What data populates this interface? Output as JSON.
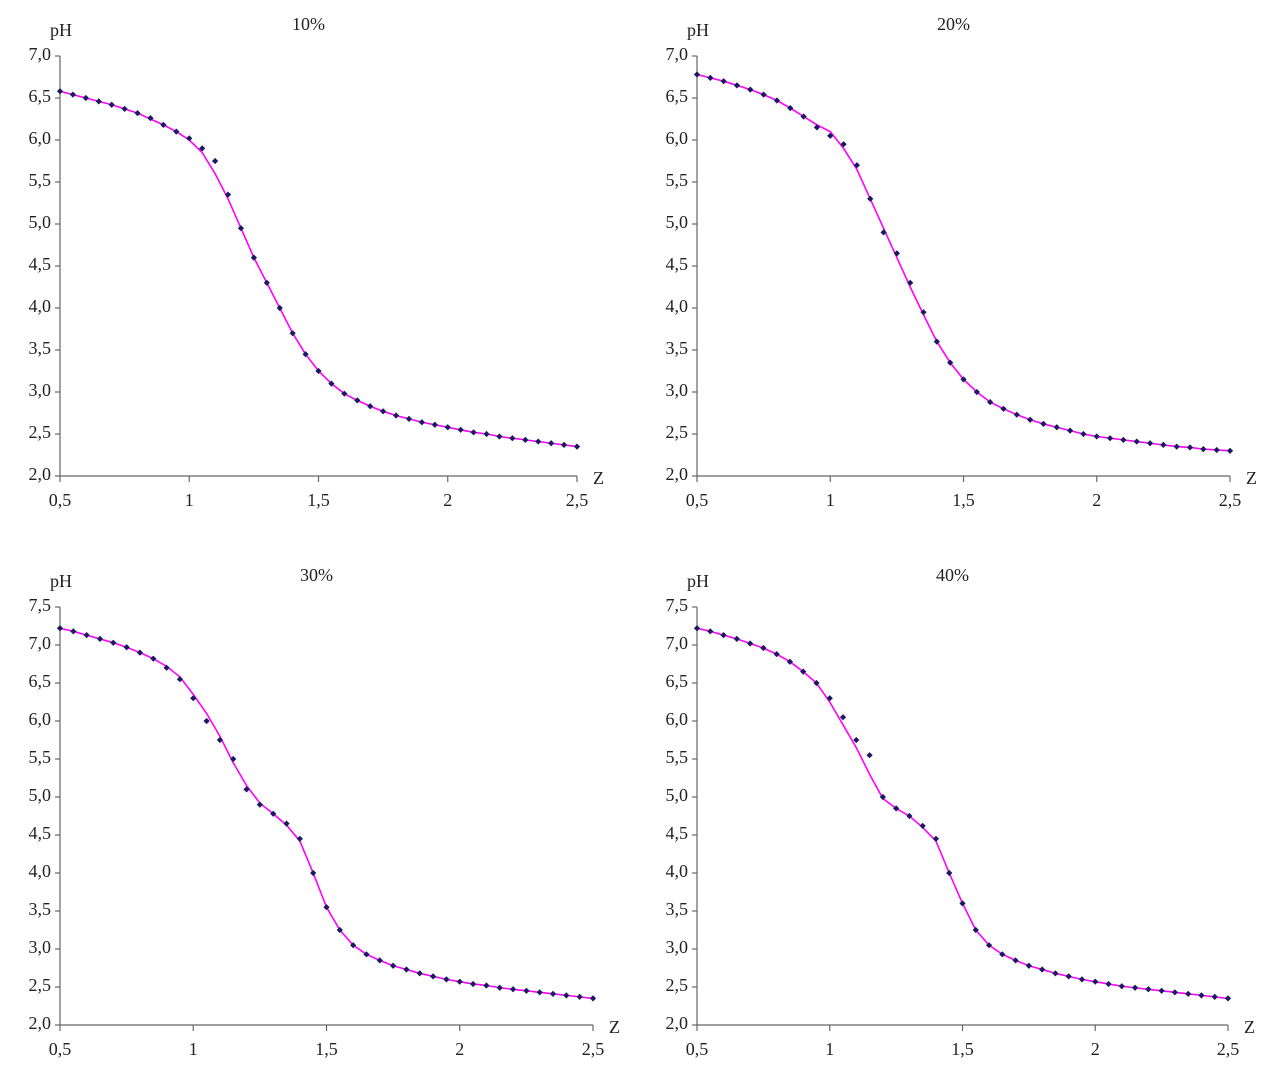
{
  "chart_data": [
    {
      "type": "line",
      "title": "10%",
      "ylabel": "pH",
      "xlabel": "Z",
      "x": [
        0.5,
        0.55,
        0.6,
        0.65,
        0.7,
        0.75,
        0.8,
        0.85,
        0.9,
        0.95,
        1.0,
        1.05,
        1.1,
        1.15,
        1.2,
        1.25,
        1.3,
        1.35,
        1.4,
        1.45,
        1.5,
        1.55,
        1.6,
        1.65,
        1.7,
        1.75,
        1.8,
        1.85,
        1.9,
        1.95,
        2.0,
        2.05,
        2.1,
        2.15,
        2.2,
        2.25,
        2.3,
        2.35,
        2.4,
        2.45,
        2.5
      ],
      "series": [
        {
          "color": "#ff00ff",
          "style": "line",
          "values": [
            6.58,
            6.54,
            6.5,
            6.46,
            6.42,
            6.37,
            6.32,
            6.25,
            6.18,
            6.1,
            6.0,
            5.85,
            5.6,
            5.3,
            4.95,
            4.6,
            4.3,
            4.0,
            3.7,
            3.45,
            3.25,
            3.1,
            2.98,
            2.9,
            2.83,
            2.77,
            2.72,
            2.68,
            2.64,
            2.61,
            2.58,
            2.55,
            2.52,
            2.5,
            2.47,
            2.45,
            2.43,
            2.41,
            2.39,
            2.37,
            2.35
          ]
        },
        {
          "color": "#1a1a5e",
          "style": "markers",
          "values": [
            6.58,
            6.54,
            6.5,
            6.46,
            6.42,
            6.37,
            6.32,
            6.26,
            6.18,
            6.1,
            6.02,
            5.9,
            5.75,
            5.35,
            4.95,
            4.6,
            4.3,
            4.0,
            3.7,
            3.45,
            3.25,
            3.1,
            2.98,
            2.9,
            2.83,
            2.77,
            2.72,
            2.68,
            2.64,
            2.61,
            2.58,
            2.55,
            2.52,
            2.5,
            2.47,
            2.45,
            2.43,
            2.41,
            2.39,
            2.37,
            2.35
          ]
        }
      ],
      "xlim": [
        0.5,
        2.5
      ],
      "ylim": [
        2,
        7
      ],
      "xticks": [
        {
          "value": 0.5,
          "label": "0,5"
        },
        1,
        {
          "value": 1.5,
          "label": "1,5"
        },
        2,
        {
          "value": 2.5,
          "label": "2,5"
        }
      ],
      "yticks": [
        {
          "value": 2,
          "label": "2,0"
        },
        {
          "value": 2.5,
          "label": "2,5"
        },
        {
          "value": 3,
          "label": "3,0"
        },
        {
          "value": 3.5,
          "label": "3,5"
        },
        {
          "value": 4,
          "label": "4,0"
        },
        {
          "value": 4.5,
          "label": "4,5"
        },
        {
          "value": 5,
          "label": "5,0"
        },
        {
          "value": 5.5,
          "label": "5,5"
        },
        {
          "value": 6,
          "label": "6,0"
        },
        {
          "value": 6.5,
          "label": "6,5"
        },
        {
          "value": 7,
          "label": "7,0"
        }
      ]
    },
    {
      "type": "line",
      "title": "20%",
      "ylabel": "pH",
      "xlabel": "Z",
      "x": [
        0.5,
        0.55,
        0.6,
        0.65,
        0.7,
        0.75,
        0.8,
        0.85,
        0.9,
        0.95,
        1.0,
        1.05,
        1.1,
        1.15,
        1.2,
        1.25,
        1.3,
        1.35,
        1.4,
        1.45,
        1.5,
        1.55,
        1.6,
        1.65,
        1.7,
        1.75,
        1.8,
        1.85,
        1.9,
        1.95,
        2.0,
        2.05,
        2.1,
        2.15,
        2.2,
        2.25,
        2.3,
        2.35,
        2.4,
        2.45,
        2.5
      ],
      "series": [
        {
          "color": "#ff00ff",
          "style": "line",
          "values": [
            6.78,
            6.74,
            6.7,
            6.65,
            6.6,
            6.54,
            6.47,
            6.38,
            6.28,
            6.18,
            6.1,
            5.9,
            5.65,
            5.3,
            4.95,
            4.6,
            4.25,
            3.92,
            3.6,
            3.35,
            3.15,
            3.0,
            2.88,
            2.8,
            2.73,
            2.67,
            2.62,
            2.58,
            2.54,
            2.5,
            2.47,
            2.45,
            2.43,
            2.41,
            2.39,
            2.37,
            2.35,
            2.34,
            2.32,
            2.31,
            2.3
          ]
        },
        {
          "color": "#1a1a5e",
          "style": "markers",
          "values": [
            6.78,
            6.74,
            6.7,
            6.65,
            6.6,
            6.54,
            6.47,
            6.38,
            6.28,
            6.15,
            6.05,
            5.95,
            5.7,
            5.3,
            4.9,
            4.65,
            4.3,
            3.95,
            3.6,
            3.35,
            3.15,
            3.0,
            2.88,
            2.8,
            2.73,
            2.67,
            2.62,
            2.58,
            2.54,
            2.5,
            2.47,
            2.45,
            2.43,
            2.41,
            2.39,
            2.37,
            2.35,
            2.34,
            2.32,
            2.31,
            2.3
          ]
        }
      ],
      "xlim": [
        0.5,
        2.5
      ],
      "ylim": [
        2,
        7
      ],
      "xticks": [
        {
          "value": 0.5,
          "label": "0,5"
        },
        1,
        {
          "value": 1.5,
          "label": "1,5"
        },
        2,
        {
          "value": 2.5,
          "label": "2,5"
        }
      ],
      "yticks": [
        {
          "value": 2,
          "label": "2,0"
        },
        {
          "value": 2.5,
          "label": "2,5"
        },
        {
          "value": 3,
          "label": "3,0"
        },
        {
          "value": 3.5,
          "label": "3,5"
        },
        {
          "value": 4,
          "label": "4,0"
        },
        {
          "value": 4.5,
          "label": "4,5"
        },
        {
          "value": 5,
          "label": "5,0"
        },
        {
          "value": 5.5,
          "label": "5,5"
        },
        {
          "value": 6,
          "label": "6,0"
        },
        {
          "value": 6.5,
          "label": "6,5"
        },
        {
          "value": 7,
          "label": "7,0"
        }
      ]
    },
    {
      "type": "line",
      "title": "30%",
      "ylabel": "pH",
      "xlabel": "Z",
      "x": [
        0.5,
        0.55,
        0.6,
        0.65,
        0.7,
        0.75,
        0.8,
        0.85,
        0.9,
        0.95,
        1.0,
        1.05,
        1.1,
        1.15,
        1.2,
        1.25,
        1.3,
        1.35,
        1.4,
        1.45,
        1.5,
        1.55,
        1.6,
        1.65,
        1.7,
        1.75,
        1.8,
        1.85,
        1.9,
        1.95,
        2.0,
        2.05,
        2.1,
        2.15,
        2.2,
        2.25,
        2.3,
        2.35,
        2.4,
        2.45,
        2.5
      ],
      "series": [
        {
          "color": "#ff00ff",
          "style": "line",
          "values": [
            7.22,
            7.18,
            7.13,
            7.08,
            7.03,
            6.97,
            6.9,
            6.82,
            6.72,
            6.58,
            6.35,
            6.1,
            5.8,
            5.45,
            5.15,
            4.92,
            4.78,
            4.63,
            4.42,
            4.0,
            3.55,
            3.25,
            3.05,
            2.93,
            2.85,
            2.78,
            2.73,
            2.68,
            2.64,
            2.6,
            2.57,
            2.54,
            2.52,
            2.49,
            2.47,
            2.45,
            2.43,
            2.41,
            2.39,
            2.37,
            2.35
          ]
        },
        {
          "color": "#1a1a5e",
          "style": "markers",
          "values": [
            7.22,
            7.18,
            7.13,
            7.08,
            7.03,
            6.97,
            6.9,
            6.82,
            6.7,
            6.55,
            6.3,
            6.0,
            5.75,
            5.5,
            5.1,
            4.9,
            4.78,
            4.65,
            4.45,
            4.0,
            3.55,
            3.25,
            3.05,
            2.93,
            2.85,
            2.78,
            2.73,
            2.68,
            2.64,
            2.6,
            2.57,
            2.54,
            2.52,
            2.49,
            2.47,
            2.45,
            2.43,
            2.41,
            2.39,
            2.37,
            2.35
          ]
        }
      ],
      "xlim": [
        0.5,
        2.5
      ],
      "ylim": [
        2,
        7.5
      ],
      "xticks": [
        {
          "value": 0.5,
          "label": "0,5"
        },
        1,
        {
          "value": 1.5,
          "label": "1,5"
        },
        2,
        {
          "value": 2.5,
          "label": "2,5"
        }
      ],
      "yticks": [
        {
          "value": 2,
          "label": "2,0"
        },
        {
          "value": 2.5,
          "label": "2,5"
        },
        {
          "value": 3,
          "label": "3,0"
        },
        {
          "value": 3.5,
          "label": "3,5"
        },
        {
          "value": 4,
          "label": "4,0"
        },
        {
          "value": 4.5,
          "label": "4,5"
        },
        {
          "value": 5,
          "label": "5,0"
        },
        {
          "value": 5.5,
          "label": "5,5"
        },
        {
          "value": 6,
          "label": "6,0"
        },
        {
          "value": 6.5,
          "label": "6,5"
        },
        {
          "value": 7,
          "label": "7,0"
        },
        {
          "value": 7.5,
          "label": "7,5"
        }
      ]
    },
    {
      "type": "line",
      "title": "40%",
      "ylabel": "pH",
      "xlabel": "Z",
      "x": [
        0.5,
        0.55,
        0.6,
        0.65,
        0.7,
        0.75,
        0.8,
        0.85,
        0.9,
        0.95,
        1.0,
        1.05,
        1.1,
        1.15,
        1.2,
        1.25,
        1.3,
        1.35,
        1.4,
        1.45,
        1.5,
        1.55,
        1.6,
        1.65,
        1.7,
        1.75,
        1.8,
        1.85,
        1.9,
        1.95,
        2.0,
        2.05,
        2.1,
        2.15,
        2.2,
        2.25,
        2.3,
        2.35,
        2.4,
        2.45,
        2.5
      ],
      "series": [
        {
          "color": "#ff00ff",
          "style": "line",
          "values": [
            7.22,
            7.18,
            7.13,
            7.08,
            7.02,
            6.96,
            6.88,
            6.78,
            6.65,
            6.5,
            6.25,
            5.95,
            5.65,
            5.3,
            4.98,
            4.85,
            4.75,
            4.6,
            4.42,
            4.0,
            3.6,
            3.25,
            3.05,
            2.93,
            2.85,
            2.78,
            2.73,
            2.68,
            2.64,
            2.6,
            2.57,
            2.54,
            2.51,
            2.49,
            2.47,
            2.45,
            2.43,
            2.41,
            2.39,
            2.37,
            2.35
          ]
        },
        {
          "color": "#1a1a5e",
          "style": "markers",
          "values": [
            7.22,
            7.18,
            7.13,
            7.08,
            7.02,
            6.96,
            6.88,
            6.78,
            6.65,
            6.5,
            6.3,
            6.05,
            5.75,
            5.55,
            5.0,
            4.85,
            4.75,
            4.62,
            4.45,
            4.0,
            3.6,
            3.25,
            3.05,
            2.93,
            2.85,
            2.78,
            2.73,
            2.68,
            2.64,
            2.6,
            2.57,
            2.54,
            2.51,
            2.49,
            2.47,
            2.45,
            2.43,
            2.41,
            2.39,
            2.37,
            2.35
          ]
        }
      ],
      "xlim": [
        0.5,
        2.5
      ],
      "ylim": [
        2,
        7.5
      ],
      "xticks": [
        {
          "value": 0.5,
          "label": "0,5"
        },
        1,
        {
          "value": 1.5,
          "label": "1,5"
        },
        2,
        {
          "value": 2.5,
          "label": "2,5"
        }
      ],
      "yticks": [
        {
          "value": 2,
          "label": "2,0"
        },
        {
          "value": 2.5,
          "label": "2,5"
        },
        {
          "value": 3,
          "label": "3,0"
        },
        {
          "value": 3.5,
          "label": "3,5"
        },
        {
          "value": 4,
          "label": "4,0"
        },
        {
          "value": 4.5,
          "label": "4,5"
        },
        {
          "value": 5,
          "label": "5,0"
        },
        {
          "value": 5.5,
          "label": "5,5"
        },
        {
          "value": 6,
          "label": "6,0"
        },
        {
          "value": 6.5,
          "label": "6,5"
        },
        {
          "value": 7,
          "label": "7,0"
        },
        {
          "value": 7.5,
          "label": "7,5"
        }
      ]
    }
  ]
}
